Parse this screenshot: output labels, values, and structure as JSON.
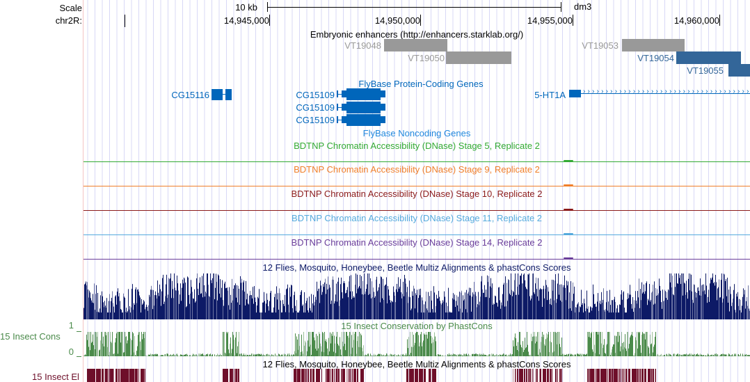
{
  "ruler": {
    "scale_label": "Scale",
    "scale_value": "10 kb",
    "assembly": "dm3",
    "chrom_label": "chr2R:",
    "ticks": [
      "14,945,000",
      "14,950,000",
      "14,955,000",
      "14,960,000"
    ]
  },
  "enhancers": {
    "title": "Embryonic enhancers (http://enhancers.starklab.org/)",
    "items": [
      {
        "name": "VT19048",
        "color": "#999999"
      },
      {
        "name": "VT19050",
        "color": "#999999"
      },
      {
        "name": "VT19053",
        "color": "#999999"
      },
      {
        "name": "VT19054",
        "color": "#336699"
      },
      {
        "name": "VT19055",
        "color": "#336699"
      }
    ]
  },
  "genes": {
    "title": "FlyBase Protein-Coding Genes",
    "noncoding_title": "FlyBase Noncoding Genes",
    "items": [
      "CG15116",
      "CG15109",
      "CG15109",
      "CG15109",
      "5-HT1A"
    ],
    "color": "#0066bb"
  },
  "dnase": [
    {
      "label": "BDTNP Chromatin Accessibility (DNase) Stage 5, Replicate 2",
      "color": "#33aa33"
    },
    {
      "label": "BDTNP Chromatin Accessibility (DNase) Stage 9, Replicate 2",
      "color": "#f07f2a"
    },
    {
      "label": "BDTNP Chromatin Accessibility (DNase) Stage 10, Replicate 2",
      "color": "#8b1a1a"
    },
    {
      "label": "BDTNP Chromatin Accessibility (DNase) Stage 11, Replicate 2",
      "color": "#55aadd"
    },
    {
      "label": "BDTNP Chromatin Accessibility (DNase) Stage 14, Replicate 2",
      "color": "#6a3d9a"
    }
  ],
  "multiz": {
    "label": "12 Flies, Mosquito, Honeybee, Beetle Multiz Alignments & phastCons Scores",
    "color": "#0d1a66"
  },
  "cons": {
    "label": "15 Insect Conservation by PhastCons",
    "side_label": "15 Insect Cons",
    "y_max": "1",
    "y_min": "0",
    "color": "#4a8a4a"
  },
  "elements": {
    "label": "12 Flies, Mosquito, Honeybee, Beetle Multiz Alignments & phastCons Scores",
    "side_label": "15 Insect El",
    "color": "#6e0f2a"
  }
}
